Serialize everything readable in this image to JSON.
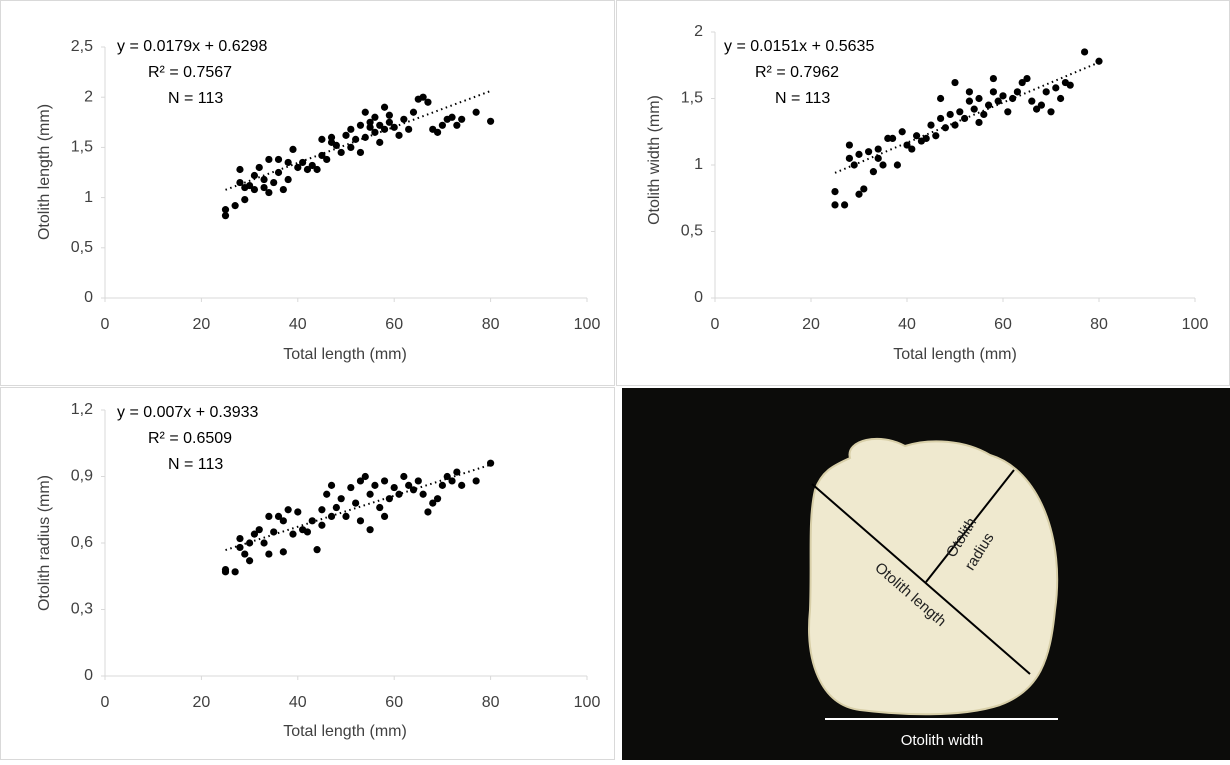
{
  "chart_data": [
    {
      "type": "scatter",
      "x_label": "Total length (mm)",
      "y_label": "Otolith length (mm)",
      "equation": "y = 0.0179x + 0.6298",
      "r2": "R² = 0.7567",
      "n": "N = 113",
      "trendline": {
        "slope": 0.0179,
        "intercept": 0.6298,
        "x_range": [
          25,
          80
        ]
      },
      "color": "#000000",
      "x": [
        25,
        25,
        27,
        28,
        28,
        29,
        29,
        30,
        31,
        31,
        32,
        33,
        33,
        34,
        34,
        35,
        36,
        36,
        37,
        38,
        38,
        39,
        40,
        41,
        42,
        43,
        44,
        45,
        45,
        46,
        47,
        47,
        48,
        49,
        50,
        51,
        51,
        52,
        53,
        53,
        54,
        54,
        55,
        55,
        56,
        56,
        57,
        57,
        58,
        58,
        59,
        59,
        60,
        61,
        62,
        63,
        64,
        65,
        66,
        67,
        68,
        69,
        70,
        71,
        72,
        73,
        74,
        77,
        80
      ],
      "values": [
        0.82,
        0.88,
        0.92,
        1.28,
        1.15,
        0.98,
        1.1,
        1.12,
        1.22,
        1.08,
        1.3,
        1.18,
        1.1,
        1.05,
        1.38,
        1.15,
        1.25,
        1.38,
        1.08,
        1.35,
        1.18,
        1.48,
        1.3,
        1.35,
        1.28,
        1.32,
        1.28,
        1.42,
        1.58,
        1.38,
        1.55,
        1.6,
        1.52,
        1.45,
        1.62,
        1.5,
        1.68,
        1.58,
        1.72,
        1.45,
        1.85,
        1.6,
        1.7,
        1.75,
        1.65,
        1.8,
        1.72,
        1.55,
        1.9,
        1.68,
        1.82,
        1.75,
        1.7,
        1.62,
        1.78,
        1.68,
        1.85,
        1.98,
        2.0,
        1.95,
        1.68,
        1.65,
        1.72,
        1.78,
        1.8,
        1.72,
        1.78,
        1.85,
        1.76
      ],
      "xlim": [
        0,
        100
      ],
      "xticks": [
        0,
        20,
        40,
        60,
        80,
        100
      ],
      "ylim": [
        0,
        2.5
      ],
      "yticks": [
        0,
        {
          "value": 0.5,
          "label": "0,5"
        },
        1,
        {
          "value": 1.5,
          "label": "1,5"
        },
        2,
        {
          "value": 2.5,
          "label": "2,5"
        }
      ]
    },
    {
      "type": "scatter",
      "x_label": "Total length (mm)",
      "y_label": "Otolith width (mm)",
      "equation": "y = 0.0151x + 0.5635",
      "r2": "R² = 0.7962",
      "n": "N = 113",
      "trendline": {
        "slope": 0.0151,
        "intercept": 0.5635,
        "x_range": [
          25,
          80
        ]
      },
      "color": "#000000",
      "x": [
        25,
        25,
        27,
        28,
        28,
        29,
        30,
        30,
        31,
        32,
        33,
        34,
        34,
        35,
        36,
        37,
        38,
        39,
        40,
        41,
        42,
        43,
        44,
        45,
        46,
        47,
        47,
        48,
        49,
        50,
        50,
        51,
        52,
        53,
        53,
        54,
        55,
        55,
        56,
        57,
        58,
        58,
        59,
        60,
        61,
        62,
        63,
        64,
        65,
        66,
        67,
        68,
        69,
        70,
        71,
        72,
        73,
        74,
        77,
        80
      ],
      "values": [
        0.7,
        0.8,
        0.7,
        1.15,
        1.05,
        1.0,
        0.78,
        1.08,
        0.82,
        1.1,
        0.95,
        1.05,
        1.12,
        1.0,
        1.2,
        1.2,
        1.0,
        1.25,
        1.15,
        1.12,
        1.22,
        1.18,
        1.2,
        1.3,
        1.22,
        1.35,
        1.5,
        1.28,
        1.38,
        1.3,
        1.62,
        1.4,
        1.35,
        1.48,
        1.55,
        1.42,
        1.5,
        1.32,
        1.38,
        1.45,
        1.65,
        1.55,
        1.48,
        1.52,
        1.4,
        1.5,
        1.55,
        1.62,
        1.65,
        1.48,
        1.42,
        1.45,
        1.55,
        1.4,
        1.58,
        1.5,
        1.62,
        1.6,
        1.85,
        1.78
      ],
      "xlim": [
        0,
        100
      ],
      "xticks": [
        0,
        20,
        40,
        60,
        80,
        100
      ],
      "ylim": [
        0,
        2
      ],
      "yticks": [
        0,
        {
          "value": 0.5,
          "label": "0,5"
        },
        1,
        {
          "value": 1.5,
          "label": "1,5"
        },
        2
      ]
    },
    {
      "type": "scatter",
      "x_label": "Total length (mm)",
      "y_label": "Otolith radius (mm)",
      "equation": "y = 0.007x + 0.3933",
      "r2": "R² = 0.6509",
      "n": "N = 113",
      "trendline": {
        "slope": 0.007,
        "intercept": 0.3933,
        "x_range": [
          25,
          80
        ]
      },
      "color": "#000000",
      "x": [
        25,
        25,
        27,
        28,
        28,
        29,
        30,
        30,
        31,
        32,
        33,
        34,
        34,
        35,
        36,
        37,
        37,
        38,
        39,
        40,
        41,
        42,
        43,
        44,
        45,
        45,
        46,
        47,
        47,
        48,
        49,
        50,
        51,
        52,
        53,
        53,
        54,
        55,
        55,
        56,
        57,
        58,
        58,
        59,
        60,
        61,
        62,
        63,
        64,
        65,
        66,
        67,
        68,
        69,
        70,
        71,
        72,
        73,
        74,
        77,
        80
      ],
      "values": [
        0.47,
        0.48,
        0.47,
        0.62,
        0.58,
        0.55,
        0.6,
        0.52,
        0.64,
        0.66,
        0.6,
        0.55,
        0.72,
        0.65,
        0.72,
        0.7,
        0.56,
        0.75,
        0.64,
        0.74,
        0.66,
        0.65,
        0.7,
        0.57,
        0.75,
        0.68,
        0.82,
        0.72,
        0.86,
        0.76,
        0.8,
        0.72,
        0.85,
        0.78,
        0.88,
        0.7,
        0.9,
        0.82,
        0.66,
        0.86,
        0.76,
        0.88,
        0.72,
        0.8,
        0.85,
        0.82,
        0.9,
        0.86,
        0.84,
        0.88,
        0.82,
        0.74,
        0.78,
        0.8,
        0.86,
        0.9,
        0.88,
        0.92,
        0.86,
        0.88,
        0.96
      ],
      "xlim": [
        0,
        100
      ],
      "xticks": [
        0,
        20,
        40,
        60,
        80,
        100
      ],
      "ylim": [
        0,
        1.2
      ],
      "yticks": [
        0,
        {
          "value": 0.3,
          "label": "0,3"
        },
        {
          "value": 0.6,
          "label": "0,6"
        },
        {
          "value": 0.9,
          "label": "0,9"
        },
        {
          "value": 1.2,
          "label": "1,2"
        }
      ]
    }
  ],
  "photo": {
    "length_label": "Otolith length",
    "radius_label": [
      "Otolith",
      "radius"
    ],
    "width_label": "Otolith width"
  }
}
